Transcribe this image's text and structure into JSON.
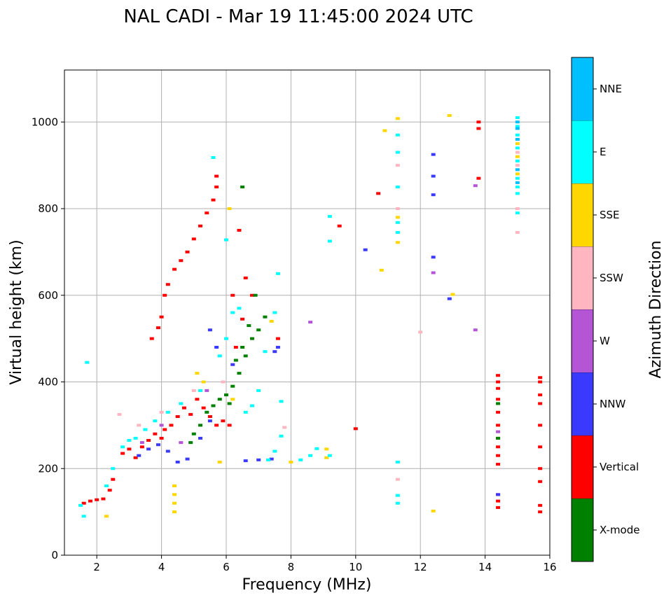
{
  "chart_data": {
    "type": "scatter",
    "title": "NAL CADI - Mar 19 11:45:00 2024 UTC",
    "xlabel": "Frequency (MHz)",
    "ylabel": "Virtual height (km)",
    "xlim": [
      1,
      16
    ],
    "ylim": [
      0,
      1120
    ],
    "xticks": [
      2,
      4,
      6,
      8,
      10,
      12,
      14,
      16
    ],
    "yticks": [
      0,
      200,
      400,
      600,
      800,
      1000
    ],
    "grid": true,
    "colorbar": {
      "label": "Azimuth Direction",
      "categories": [
        {
          "name": "X-mode",
          "color": "#008000"
        },
        {
          "name": "Vertical",
          "color": "#ff0000"
        },
        {
          "name": "NNW",
          "color": "#3a3aff"
        },
        {
          "name": "W",
          "color": "#b455d6"
        },
        {
          "name": "SSW",
          "color": "#ffb6c1"
        },
        {
          "name": "SSE",
          "color": "#ffd700"
        },
        {
          "name": "E",
          "color": "#00ffff"
        },
        {
          "name": "NNE",
          "color": "#00bfff"
        }
      ]
    },
    "series": [
      {
        "name": "Vertical",
        "points": [
          [
            1.6,
            120
          ],
          [
            1.8,
            125
          ],
          [
            2.0,
            128
          ],
          [
            2.2,
            130
          ],
          [
            2.4,
            150
          ],
          [
            2.5,
            175
          ],
          [
            2.8,
            235
          ],
          [
            3.0,
            245
          ],
          [
            3.2,
            225
          ],
          [
            3.4,
            250
          ],
          [
            3.6,
            265
          ],
          [
            3.8,
            280
          ],
          [
            4.0,
            270
          ],
          [
            4.1,
            290
          ],
          [
            4.3,
            300
          ],
          [
            4.5,
            320
          ],
          [
            4.7,
            340
          ],
          [
            4.9,
            325
          ],
          [
            5.1,
            360
          ],
          [
            5.3,
            340
          ],
          [
            5.5,
            320
          ],
          [
            5.7,
            300
          ],
          [
            5.9,
            310
          ],
          [
            6.1,
            300
          ],
          [
            3.7,
            500
          ],
          [
            3.9,
            525
          ],
          [
            4.0,
            550
          ],
          [
            4.1,
            600
          ],
          [
            4.2,
            625
          ],
          [
            4.4,
            660
          ],
          [
            4.6,
            680
          ],
          [
            4.8,
            700
          ],
          [
            5.0,
            730
          ],
          [
            5.2,
            760
          ],
          [
            5.4,
            790
          ],
          [
            5.6,
            820
          ],
          [
            5.7,
            850
          ],
          [
            5.7,
            875
          ],
          [
            6.4,
            750
          ],
          [
            6.6,
            640
          ],
          [
            6.8,
            600
          ],
          [
            6.2,
            600
          ],
          [
            6.5,
            545
          ],
          [
            6.3,
            480
          ],
          [
            7.6,
            500
          ],
          [
            10.0,
            292
          ],
          [
            10.7,
            835
          ],
          [
            9.5,
            760
          ],
          [
            13.8,
            1000
          ],
          [
            13.8,
            985
          ],
          [
            13.8,
            870
          ],
          [
            14.4,
            415
          ],
          [
            14.4,
            400
          ],
          [
            14.4,
            385
          ],
          [
            14.4,
            360
          ],
          [
            14.4,
            330
          ],
          [
            14.4,
            300
          ],
          [
            14.4,
            270
          ],
          [
            14.4,
            250
          ],
          [
            14.4,
            230
          ],
          [
            14.4,
            210
          ],
          [
            14.4,
            140
          ],
          [
            14.4,
            125
          ],
          [
            14.4,
            110
          ],
          [
            15.7,
            410
          ],
          [
            15.7,
            400
          ],
          [
            15.7,
            370
          ],
          [
            15.7,
            350
          ],
          [
            15.7,
            300
          ],
          [
            15.7,
            250
          ],
          [
            15.7,
            200
          ],
          [
            15.7,
            170
          ],
          [
            15.7,
            115
          ],
          [
            15.7,
            100
          ]
        ]
      },
      {
        "name": "X-mode",
        "points": [
          [
            5.2,
            300
          ],
          [
            5.4,
            330
          ],
          [
            5.6,
            345
          ],
          [
            5.8,
            360
          ],
          [
            6.0,
            370
          ],
          [
            6.2,
            390
          ],
          [
            6.4,
            420
          ],
          [
            6.6,
            460
          ],
          [
            6.8,
            500
          ],
          [
            7.0,
            520
          ],
          [
            7.2,
            550
          ],
          [
            6.1,
            350
          ],
          [
            6.3,
            450
          ],
          [
            6.5,
            480
          ],
          [
            6.7,
            530
          ],
          [
            6.9,
            600
          ],
          [
            5.0,
            280
          ],
          [
            4.9,
            260
          ],
          [
            6.5,
            850
          ],
          [
            14.4,
            350
          ],
          [
            14.4,
            270
          ]
        ]
      },
      {
        "name": "NNW",
        "points": [
          [
            3.3,
            230
          ],
          [
            3.6,
            245
          ],
          [
            3.9,
            255
          ],
          [
            4.2,
            240
          ],
          [
            4.5,
            215
          ],
          [
            4.8,
            222
          ],
          [
            5.2,
            270
          ],
          [
            5.5,
            310
          ],
          [
            6.6,
            218
          ],
          [
            7.0,
            220
          ],
          [
            7.4,
            222
          ],
          [
            7.5,
            470
          ],
          [
            7.6,
            480
          ],
          [
            6.2,
            440
          ],
          [
            5.7,
            480
          ],
          [
            5.5,
            520
          ],
          [
            10.3,
            705
          ],
          [
            12.4,
            925
          ],
          [
            12.4,
            875
          ],
          [
            12.4,
            832
          ],
          [
            12.4,
            688
          ],
          [
            12.9,
            592
          ],
          [
            14.4,
            140
          ]
        ]
      },
      {
        "name": "W",
        "points": [
          [
            3.4,
            260
          ],
          [
            4.0,
            300
          ],
          [
            4.6,
            260
          ],
          [
            5.4,
            380
          ],
          [
            8.6,
            538
          ],
          [
            12.4,
            652
          ],
          [
            13.7,
            520
          ],
          [
            13.7,
            853
          ],
          [
            14.4,
            285
          ]
        ]
      },
      {
        "name": "SSW",
        "points": [
          [
            2.7,
            325
          ],
          [
            3.3,
            300
          ],
          [
            4.0,
            330
          ],
          [
            5.0,
            380
          ],
          [
            5.9,
            400
          ],
          [
            7.8,
            295
          ],
          [
            11.3,
            175
          ],
          [
            11.3,
            800
          ],
          [
            11.3,
            900
          ],
          [
            15.0,
            960
          ],
          [
            15.0,
            930
          ],
          [
            15.0,
            900
          ],
          [
            15.0,
            800
          ],
          [
            15.0,
            745
          ],
          [
            12.0,
            515
          ]
        ]
      },
      {
        "name": "SSE",
        "points": [
          [
            2.3,
            90
          ],
          [
            4.4,
            160
          ],
          [
            4.4,
            140
          ],
          [
            4.4,
            120
          ],
          [
            4.4,
            100
          ],
          [
            5.1,
            420
          ],
          [
            5.3,
            400
          ],
          [
            5.8,
            215
          ],
          [
            6.1,
            800
          ],
          [
            6.2,
            360
          ],
          [
            7.4,
            540
          ],
          [
            8.0,
            215
          ],
          [
            9.1,
            225
          ],
          [
            9.1,
            245
          ],
          [
            10.8,
            658
          ],
          [
            10.9,
            980
          ],
          [
            11.3,
            1008
          ],
          [
            11.3,
            780
          ],
          [
            11.3,
            722
          ],
          [
            12.4,
            102
          ],
          [
            13.0,
            602
          ],
          [
            12.9,
            1015
          ],
          [
            15.0,
            950
          ],
          [
            15.0,
            920
          ],
          [
            15.0,
            880
          ]
        ]
      },
      {
        "name": "E",
        "points": [
          [
            1.5,
            115
          ],
          [
            1.6,
            90
          ],
          [
            1.7,
            445
          ],
          [
            2.3,
            160
          ],
          [
            2.5,
            200
          ],
          [
            2.8,
            250
          ],
          [
            3.0,
            265
          ],
          [
            3.2,
            270
          ],
          [
            3.5,
            290
          ],
          [
            3.8,
            310
          ],
          [
            4.2,
            330
          ],
          [
            4.6,
            350
          ],
          [
            5.2,
            380
          ],
          [
            5.8,
            460
          ],
          [
            6.0,
            500
          ],
          [
            6.2,
            560
          ],
          [
            6.4,
            570
          ],
          [
            6.6,
            330
          ],
          [
            6.8,
            345
          ],
          [
            7.0,
            380
          ],
          [
            7.2,
            470
          ],
          [
            7.5,
            560
          ],
          [
            7.6,
            650
          ],
          [
            7.7,
            355
          ],
          [
            7.3,
            220
          ],
          [
            7.5,
            240
          ],
          [
            7.7,
            275
          ],
          [
            8.3,
            220
          ],
          [
            8.6,
            230
          ],
          [
            8.8,
            246
          ],
          [
            9.2,
            230
          ],
          [
            9.2,
            725
          ],
          [
            9.2,
            782
          ],
          [
            5.6,
            918
          ],
          [
            6.0,
            728
          ],
          [
            11.3,
            120
          ],
          [
            11.3,
            138
          ],
          [
            11.3,
            215
          ],
          [
            11.3,
            745
          ],
          [
            11.3,
            768
          ],
          [
            11.3,
            850
          ],
          [
            11.3,
            930
          ],
          [
            11.3,
            970
          ],
          [
            15.0,
            1010
          ],
          [
            15.0,
            990
          ],
          [
            15.0,
            970
          ],
          [
            15.0,
            940
          ],
          [
            15.0,
            910
          ],
          [
            15.0,
            870
          ],
          [
            15.0,
            850
          ],
          [
            15.0,
            835
          ],
          [
            15.0,
            790
          ]
        ]
      },
      {
        "name": "NNE",
        "points": [
          [
            15.0,
            1000
          ],
          [
            15.0,
            985
          ],
          [
            15.0,
            960
          ],
          [
            15.0,
            890
          ],
          [
            15.0,
            860
          ]
        ]
      }
    ]
  }
}
